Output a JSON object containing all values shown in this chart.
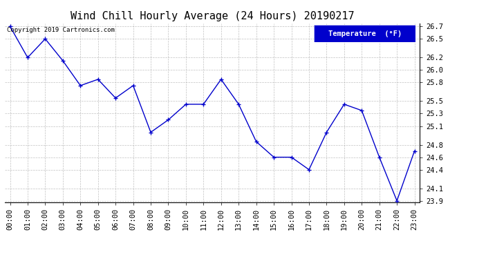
{
  "title": "Wind Chill Hourly Average (24 Hours) 20190217",
  "copyright_text": "Copyright 2019 Cartronics.com",
  "legend_label": "Temperature  (°F)",
  "x_labels": [
    "00:00",
    "01:00",
    "02:00",
    "03:00",
    "04:00",
    "05:00",
    "06:00",
    "07:00",
    "08:00",
    "09:00",
    "10:00",
    "11:00",
    "12:00",
    "13:00",
    "14:00",
    "15:00",
    "16:00",
    "17:00",
    "18:00",
    "19:00",
    "20:00",
    "21:00",
    "22:00",
    "23:00"
  ],
  "hours": [
    0,
    1,
    2,
    3,
    4,
    5,
    6,
    7,
    8,
    9,
    10,
    11,
    12,
    13,
    14,
    15,
    16,
    17,
    18,
    19,
    20,
    21,
    22,
    23
  ],
  "values": [
    26.7,
    26.2,
    26.5,
    26.15,
    25.75,
    25.85,
    25.55,
    25.75,
    25.0,
    25.2,
    25.45,
    25.45,
    25.85,
    25.45,
    24.85,
    24.6,
    24.6,
    24.4,
    25.0,
    25.45,
    25.35,
    24.6,
    23.9,
    24.7
  ],
  "ylim_min": 23.9,
  "ylim_max": 26.7,
  "yticks": [
    26.7,
    26.5,
    26.2,
    26.0,
    25.8,
    25.5,
    25.3,
    25.1,
    24.8,
    24.6,
    24.4,
    24.1,
    23.9
  ],
  "line_color": "#0000cc",
  "marker": "+",
  "background_color": "#ffffff",
  "grid_color": "#b0b0b0",
  "title_fontsize": 11,
  "tick_fontsize": 7.5,
  "copyright_fontsize": 6.5,
  "legend_bg": "#0000cc",
  "legend_fg": "#ffffff",
  "legend_fontsize": 7.5
}
